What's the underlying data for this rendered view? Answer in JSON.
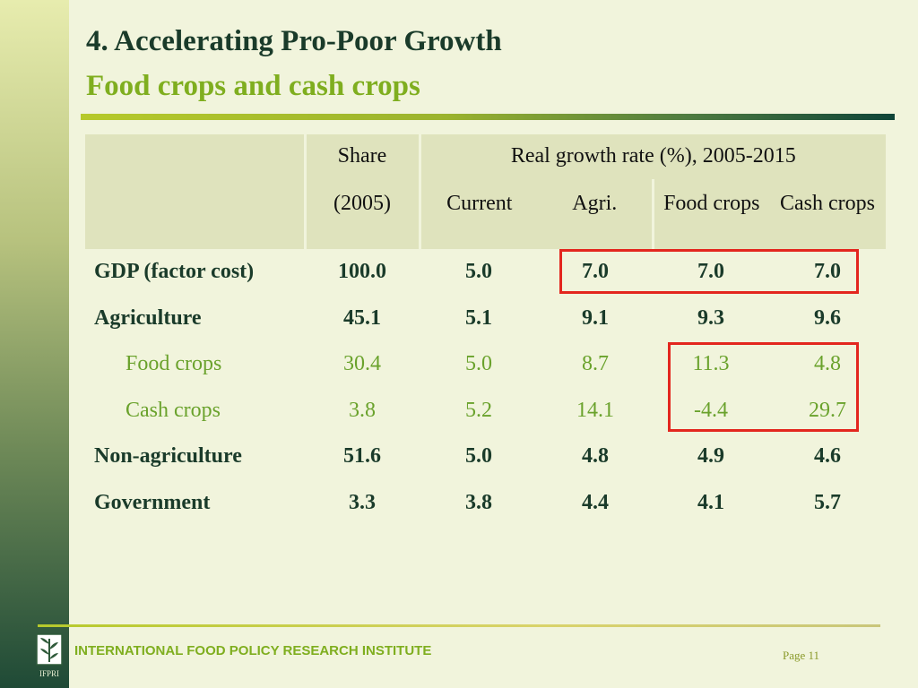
{
  "title": {
    "main": "4. Accelerating Pro-Poor Growth",
    "sub": "Food crops and cash crops"
  },
  "table": {
    "header_row1": [
      "",
      "Share",
      "Real growth rate (%), 2005-2015"
    ],
    "header_row2": [
      "",
      "(2005)",
      "Current",
      "Agri.",
      "Food crops",
      "Cash crops"
    ],
    "rows": [
      {
        "label": "GDP (factor cost)",
        "values": [
          "100.0",
          "5.0",
          "7.0",
          "7.0",
          "7.0"
        ]
      },
      {
        "label": "Agriculture",
        "values": [
          "45.1",
          "5.1",
          "9.1",
          "9.3",
          "9.6"
        ]
      },
      {
        "label": "Food crops",
        "values": [
          "30.4",
          "5.0",
          "8.7",
          "11.3",
          "4.8"
        ]
      },
      {
        "label": "Cash crops",
        "values": [
          "3.8",
          "5.2",
          "14.1",
          "-4.4",
          "29.7"
        ]
      },
      {
        "label": "Non-agriculture",
        "values": [
          "51.6",
          "5.0",
          "4.8",
          "4.9",
          "4.6"
        ]
      },
      {
        "label": "Government",
        "values": [
          "3.3",
          "3.8",
          "4.4",
          "4.1",
          "5.7"
        ]
      }
    ]
  },
  "colors": {
    "title_dark": "#1a3b2a",
    "title_green": "#7fae1f",
    "highlight_red": "#e3261e",
    "header_bg": "#dfe3bd",
    "slide_bg": "#f1f4dc"
  },
  "footer": {
    "logo_text": "IFPRI",
    "org_name": "INTERNATIONAL FOOD POLICY RESEARCH INSTITUTE",
    "page": "Page 11"
  }
}
